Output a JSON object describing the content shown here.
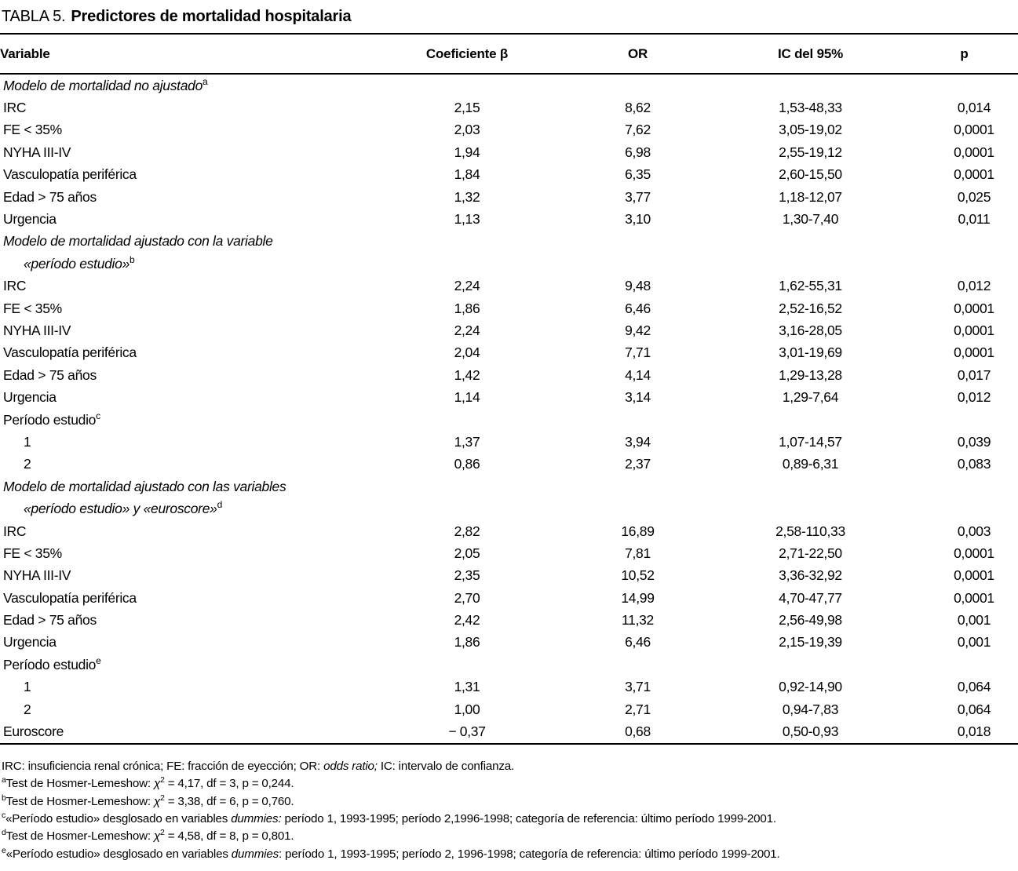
{
  "title": {
    "prefix": "TABLA 5.",
    "text": "Predictores de mortalidad hospitalaria"
  },
  "table": {
    "columns": [
      "Variable",
      "Coeficiente β",
      "OR",
      "IC del 95%",
      "p"
    ],
    "rows": [
      {
        "label": "Modelo de mortalidad no ajustado",
        "sup": "a",
        "italic": true,
        "indent": 0,
        "values": null
      },
      {
        "label": "IRC",
        "italic": false,
        "indent": 0,
        "values": [
          "2,15",
          "8,62",
          "1,53-48,33",
          "0,014"
        ]
      },
      {
        "label": "FE < 35%",
        "italic": false,
        "indent": 0,
        "values": [
          "2,03",
          "7,62",
          "3,05-19,02",
          "0,0001"
        ]
      },
      {
        "label": "NYHA III-IV",
        "italic": false,
        "indent": 0,
        "values": [
          "1,94",
          "6,98",
          "2,55-19,12",
          "0,0001"
        ]
      },
      {
        "label": "Vasculopatía periférica",
        "italic": false,
        "indent": 0,
        "values": [
          "1,84",
          "6,35",
          "2,60-15,50",
          "0,0001"
        ]
      },
      {
        "label": "Edad > 75 años",
        "italic": false,
        "indent": 0,
        "values": [
          "1,32",
          "3,77",
          "1,18-12,07",
          "0,025"
        ]
      },
      {
        "label": "Urgencia",
        "italic": false,
        "indent": 0,
        "values": [
          "1,13",
          "3,10",
          "1,30-7,40",
          "0,011"
        ]
      },
      {
        "label": "Modelo de mortalidad ajustado con la variable",
        "italic": true,
        "indent": 0,
        "values": null
      },
      {
        "label": "«período estudio»",
        "sup": "b",
        "italic": true,
        "indent": 1,
        "values": null
      },
      {
        "label": "IRC",
        "italic": false,
        "indent": 0,
        "values": [
          "2,24",
          "9,48",
          "1,62-55,31",
          "0,012"
        ]
      },
      {
        "label": "FE < 35%",
        "italic": false,
        "indent": 0,
        "values": [
          "1,86",
          "6,46",
          "2,52-16,52",
          "0,0001"
        ]
      },
      {
        "label": "NYHA III-IV",
        "italic": false,
        "indent": 0,
        "values": [
          "2,24",
          "9,42",
          "3,16-28,05",
          "0,0001"
        ]
      },
      {
        "label": "Vasculopatía periférica",
        "italic": false,
        "indent": 0,
        "values": [
          "2,04",
          "7,71",
          "3,01-19,69",
          "0,0001"
        ]
      },
      {
        "label": "Edad > 75 años",
        "italic": false,
        "indent": 0,
        "values": [
          "1,42",
          "4,14",
          "1,29-13,28",
          "0,017"
        ]
      },
      {
        "label": "Urgencia",
        "italic": false,
        "indent": 0,
        "values": [
          "1,14",
          "3,14",
          "1,29-7,64",
          "0,012"
        ]
      },
      {
        "label": "Período estudio",
        "sup": "c",
        "italic": false,
        "indent": 0,
        "values": null
      },
      {
        "label": "1",
        "italic": false,
        "indent": 1,
        "values": [
          "1,37",
          "3,94",
          "1,07-14,57",
          "0,039"
        ]
      },
      {
        "label": "2",
        "italic": false,
        "indent": 1,
        "values": [
          "0,86",
          "2,37",
          "0,89-6,31",
          "0,083"
        ]
      },
      {
        "label": "Modelo de mortalidad ajustado con las variables",
        "italic": true,
        "indent": 0,
        "values": null
      },
      {
        "label": "«período estudio» y «euroscore»",
        "sup": "d",
        "italic": true,
        "indent": 1,
        "values": null
      },
      {
        "label": "IRC",
        "italic": false,
        "indent": 0,
        "values": [
          "2,82",
          "16,89",
          "2,58-110,33",
          "0,003"
        ]
      },
      {
        "label": "FE < 35%",
        "italic": false,
        "indent": 0,
        "values": [
          "2,05",
          "7,81",
          "2,71-22,50",
          "0,0001"
        ]
      },
      {
        "label": "NYHA III-IV",
        "italic": false,
        "indent": 0,
        "values": [
          "2,35",
          "10,52",
          "3,36-32,92",
          "0,0001"
        ]
      },
      {
        "label": "Vasculopatía periférica",
        "italic": false,
        "indent": 0,
        "values": [
          "2,70",
          "14,99",
          "4,70-47,77",
          "0,0001"
        ]
      },
      {
        "label": "Edad > 75 años",
        "italic": false,
        "indent": 0,
        "values": [
          "2,42",
          "11,32",
          "2,56-49,98",
          "0,001"
        ]
      },
      {
        "label": "Urgencia",
        "italic": false,
        "indent": 0,
        "values": [
          "1,86",
          "6,46",
          "2,15-19,39",
          "0,001"
        ]
      },
      {
        "label": "Período estudio",
        "sup": "e",
        "italic": false,
        "indent": 0,
        "values": null
      },
      {
        "label": "1",
        "italic": false,
        "indent": 1,
        "values": [
          "1,31",
          "3,71",
          "0,92-14,90",
          "0,064"
        ]
      },
      {
        "label": "2",
        "italic": false,
        "indent": 1,
        "values": [
          "1,00",
          "2,71",
          "0,94-7,83",
          "0,064"
        ]
      },
      {
        "label": "Euroscore",
        "italic": false,
        "indent": 0,
        "values": [
          "− 0,37",
          "0,68",
          "0,50-0,93",
          "0,018"
        ]
      }
    ]
  },
  "footnotes": [
    {
      "segments": [
        {
          "t": "IRC: insuficiencia renal crónica; FE: fracción de eyección; OR: "
        },
        {
          "t": "odds ratio;",
          "s": "i"
        },
        {
          "t": " IC: intervalo de confianza."
        }
      ]
    },
    {
      "segments": [
        {
          "t": "a",
          "s": "sup"
        },
        {
          "t": "Test de Hosmer-Lemeshow: "
        },
        {
          "t": "χ",
          "s": "i"
        },
        {
          "t": "2",
          "s": "sup"
        },
        {
          "t": " = 4,17, df = 3, p = 0,244."
        }
      ]
    },
    {
      "segments": [
        {
          "t": "b",
          "s": "sup"
        },
        {
          "t": "Test de Hosmer-Lemeshow: "
        },
        {
          "t": "χ",
          "s": "i"
        },
        {
          "t": "2",
          "s": "sup"
        },
        {
          "t": " = 3,38, df = 6, p = 0,760."
        }
      ]
    },
    {
      "segments": [
        {
          "t": "c",
          "s": "sup"
        },
        {
          "t": "«Período estudio» desglosado en variables "
        },
        {
          "t": "dummies:",
          "s": "i"
        },
        {
          "t": " período 1, 1993-1995; período 2,1996-1998; categoría de referencia: último período 1999-2001."
        }
      ]
    },
    {
      "segments": [
        {
          "t": "d",
          "s": "sup"
        },
        {
          "t": "Test de Hosmer-Lemeshow: "
        },
        {
          "t": "χ",
          "s": "i"
        },
        {
          "t": "2",
          "s": "sup"
        },
        {
          "t": " = 4,58, df = 8, p = 0,801."
        }
      ]
    },
    {
      "segments": [
        {
          "t": "e",
          "s": "sup"
        },
        {
          "t": "«Período estudio» desglosado en variables "
        },
        {
          "t": "dummies",
          "s": "i"
        },
        {
          "t": ": período 1, 1993-1995; período 2, 1996-1998; categoría de referencia: último período 1999-2001."
        }
      ]
    }
  ],
  "colors": {
    "text": "#000000",
    "background": "#ffffff",
    "rule": "#000000"
  }
}
